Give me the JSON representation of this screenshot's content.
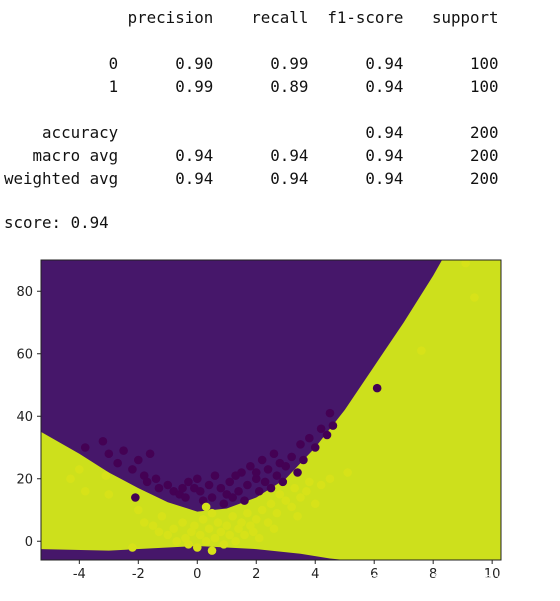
{
  "report": {
    "headers": [
      "precision",
      "recall",
      "f1-score",
      "support"
    ],
    "rows": [
      {
        "label": "0",
        "precision": "0.90",
        "recall": "0.99",
        "f1": "0.94",
        "support": "100"
      },
      {
        "label": "1",
        "precision": "0.99",
        "recall": "0.89",
        "f1": "0.94",
        "support": "100"
      },
      {
        "label": "accuracy",
        "precision": "",
        "recall": "",
        "f1": "0.94",
        "support": "200"
      },
      {
        "label": "macro avg",
        "precision": "0.94",
        "recall": "0.94",
        "f1": "0.94",
        "support": "200"
      },
      {
        "label": "weighted avg",
        "precision": "0.94",
        "recall": "0.94",
        "f1": "0.94",
        "support": "200"
      }
    ]
  },
  "score_text": "score: 0.94",
  "watermark": "CSDN @人工智能学术前沿（真）",
  "colors": {
    "class0": "#440154",
    "class1": "#d7e219",
    "region0": "#46176a",
    "region1": "#cde01c"
  },
  "chart_data": {
    "type": "scatter",
    "title": "",
    "xlabel": "",
    "ylabel": "",
    "xlim": [
      -5.3,
      10.3
    ],
    "ylim": [
      -6,
      90
    ],
    "xticks": [
      -4,
      -2,
      0,
      2,
      4,
      6,
      8,
      10
    ],
    "yticks": [
      0,
      20,
      40,
      60,
      80
    ],
    "decision_boundary": {
      "upper": [
        [
          -5.3,
          35
        ],
        [
          -4,
          28
        ],
        [
          -3,
          22
        ],
        [
          -2,
          17
        ],
        [
          -1,
          12.5
        ],
        [
          0,
          9.5
        ],
        [
          1,
          10.5
        ],
        [
          2,
          14
        ],
        [
          3,
          20
        ],
        [
          4,
          30
        ],
        [
          5,
          42
        ],
        [
          6,
          56
        ],
        [
          7,
          70
        ],
        [
          8,
          85
        ],
        [
          8.3,
          90
        ]
      ],
      "lower": [
        [
          -5.3,
          -2.5
        ],
        [
          -3,
          -3
        ],
        [
          -1,
          -2
        ],
        [
          0,
          -1.5
        ],
        [
          2,
          -2.5
        ],
        [
          3.5,
          -4
        ],
        [
          4.5,
          -5.5
        ],
        [
          5,
          -6
        ]
      ]
    },
    "series": [
      {
        "class": 0,
        "points": [
          [
            -3.8,
            30
          ],
          [
            -3.2,
            32
          ],
          [
            -3,
            28
          ],
          [
            -2.7,
            25
          ],
          [
            -2.5,
            29
          ],
          [
            -2.2,
            23
          ],
          [
            -2.0,
            26
          ],
          [
            -1.8,
            21
          ],
          [
            -1.7,
            19
          ],
          [
            -1.6,
            28
          ],
          [
            -1.4,
            20
          ],
          [
            -1.3,
            17
          ],
          [
            -1.0,
            18
          ],
          [
            -0.8,
            16
          ],
          [
            -0.6,
            15
          ],
          [
            -0.4,
            14
          ],
          [
            -0.3,
            19
          ],
          [
            -0.1,
            17
          ],
          [
            0.1,
            16
          ],
          [
            0.2,
            13
          ],
          [
            0.4,
            18
          ],
          [
            0.5,
            14
          ],
          [
            0.6,
            21
          ],
          [
            0.8,
            17
          ],
          [
            0.9,
            12
          ],
          [
            1.0,
            15
          ],
          [
            1.1,
            19
          ],
          [
            1.2,
            14
          ],
          [
            1.4,
            16
          ],
          [
            1.5,
            22
          ],
          [
            1.6,
            13
          ],
          [
            1.7,
            18
          ],
          [
            1.8,
            24
          ],
          [
            2.0,
            20
          ],
          [
            2.1,
            16
          ],
          [
            2.2,
            26
          ],
          [
            2.3,
            19
          ],
          [
            2.4,
            23
          ],
          [
            2.5,
            17
          ],
          [
            2.6,
            28
          ],
          [
            2.7,
            21
          ],
          [
            2.8,
            25
          ],
          [
            2.9,
            19
          ],
          [
            3.0,
            24
          ],
          [
            3.2,
            27
          ],
          [
            3.4,
            22
          ],
          [
            3.5,
            31
          ],
          [
            3.6,
            26
          ],
          [
            3.8,
            33
          ],
          [
            4.0,
            30
          ],
          [
            4.2,
            36
          ],
          [
            4.4,
            34
          ],
          [
            4.5,
            41
          ],
          [
            4.6,
            37
          ],
          [
            2.0,
            22
          ],
          [
            1.3,
            21
          ],
          [
            0.0,
            20
          ],
          [
            -0.5,
            17
          ],
          [
            -2.1,
            14
          ],
          [
            6.1,
            49
          ]
        ]
      },
      {
        "class": 1,
        "points": [
          [
            -4.3,
            20
          ],
          [
            -4.0,
            23
          ],
          [
            -3.8,
            16
          ],
          [
            -3.1,
            21
          ],
          [
            -3.0,
            15
          ],
          [
            -2.0,
            10
          ],
          [
            -1.5,
            5
          ],
          [
            -1.3,
            3
          ],
          [
            -1.2,
            8
          ],
          [
            -1.0,
            2
          ],
          [
            -0.8,
            4
          ],
          [
            -0.7,
            0
          ],
          [
            -0.5,
            6
          ],
          [
            -0.4,
            1
          ],
          [
            -0.3,
            -1
          ],
          [
            -0.2,
            3
          ],
          [
            -0.1,
            5
          ],
          [
            0.0,
            -2
          ],
          [
            0.1,
            2
          ],
          [
            0.2,
            7
          ],
          [
            0.3,
            0
          ],
          [
            0.4,
            4
          ],
          [
            0.5,
            -3
          ],
          [
            0.6,
            1
          ],
          [
            0.7,
            6
          ],
          [
            0.8,
            3
          ],
          [
            0.9,
            -1
          ],
          [
            1.0,
            5
          ],
          [
            1.1,
            2
          ],
          [
            1.2,
            8
          ],
          [
            1.3,
            0
          ],
          [
            1.4,
            4
          ],
          [
            1.5,
            6
          ],
          [
            1.6,
            2
          ],
          [
            1.7,
            9
          ],
          [
            1.8,
            5
          ],
          [
            1.9,
            3
          ],
          [
            2.0,
            7
          ],
          [
            2.1,
            1
          ],
          [
            2.2,
            10
          ],
          [
            2.4,
            6
          ],
          [
            2.5,
            12
          ],
          [
            2.6,
            4
          ],
          [
            2.7,
            9
          ],
          [
            2.8,
            15
          ],
          [
            3.0,
            13
          ],
          [
            3.2,
            11
          ],
          [
            3.3,
            17
          ],
          [
            3.4,
            8
          ],
          [
            3.5,
            14
          ],
          [
            3.7,
            16
          ],
          [
            3.8,
            19
          ],
          [
            4.0,
            12
          ],
          [
            4.2,
            18
          ],
          [
            4.5,
            20
          ],
          [
            5.1,
            22
          ],
          [
            0.5,
            9
          ],
          [
            0.3,
            11
          ],
          [
            -1.8,
            6
          ],
          [
            -2.2,
            -2
          ],
          [
            7.6,
            61
          ],
          [
            9.1,
            89
          ],
          [
            9.4,
            78
          ]
        ]
      }
    ]
  }
}
